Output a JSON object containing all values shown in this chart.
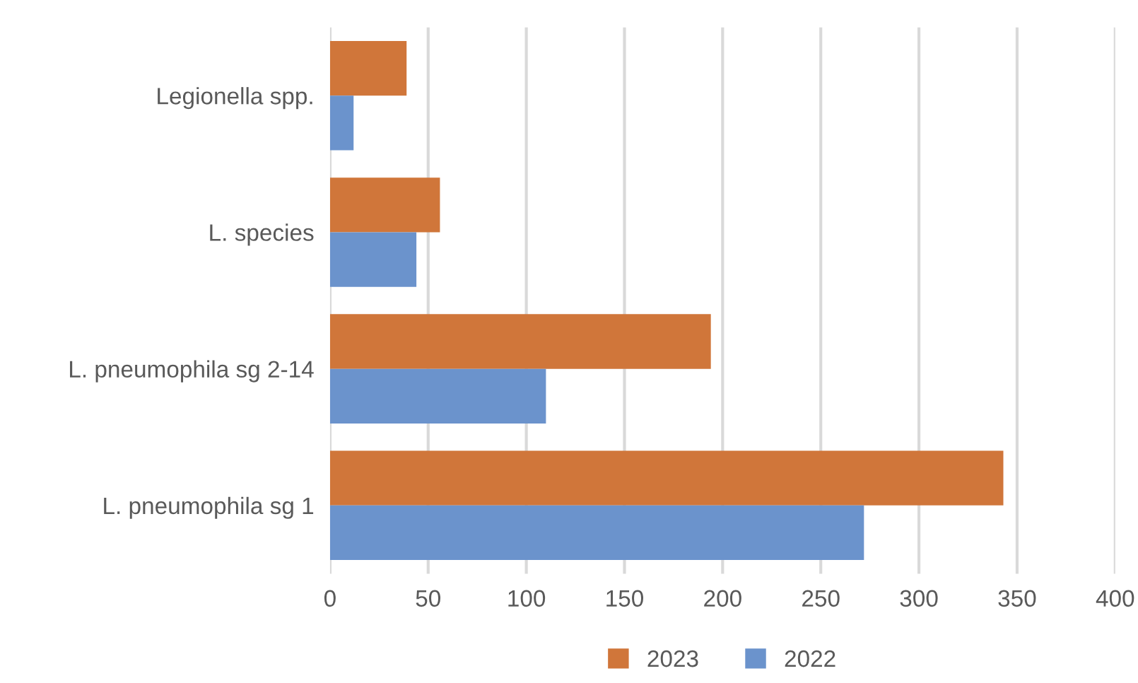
{
  "chart_data": {
    "type": "bar",
    "orientation": "horizontal",
    "categories": [
      "Legionella spp.",
      "L. species",
      "L. pneumophila sg 2-14",
      "L. pneumophila sg 1"
    ],
    "series": [
      {
        "name": "2023",
        "color": "#d0763a",
        "values": [
          39,
          56,
          194,
          343
        ]
      },
      {
        "name": "2022",
        "color": "#6b93cc",
        "values": [
          12,
          44,
          110,
          272
        ]
      }
    ],
    "xlim": [
      0,
      400
    ],
    "xticks": [
      0,
      50,
      100,
      150,
      200,
      250,
      300,
      350,
      400
    ],
    "grid": "x",
    "legend": "bottom"
  }
}
